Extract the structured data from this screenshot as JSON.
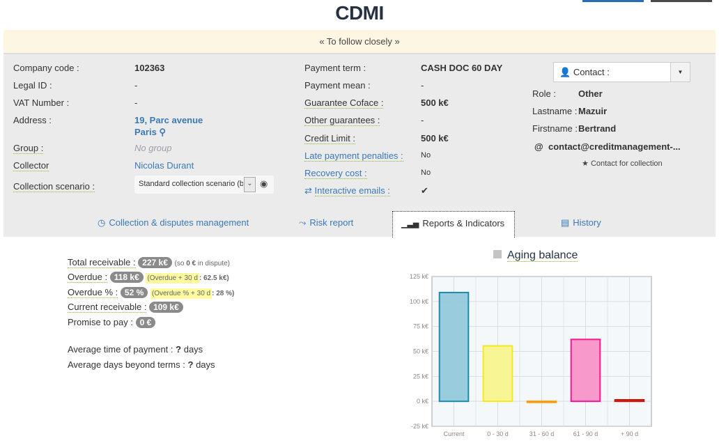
{
  "page": {
    "title": "CDMI",
    "banner": "« To follow closely »"
  },
  "company": {
    "left": [
      {
        "label": "Company code :",
        "value": "102363"
      },
      {
        "label": "Legal ID :",
        "value": "-"
      },
      {
        "label": "VAT Number :",
        "value": "-"
      },
      {
        "label": "Address :",
        "value": "19, Parc avenue",
        "value2": "Paris"
      },
      {
        "label": "Group :",
        "value": "No group"
      },
      {
        "label": "Collector",
        "value": "Nicolas Durant"
      },
      {
        "label": "Collection scenario :",
        "value": "Standard collection scenario (b"
      }
    ],
    "middle": [
      {
        "label": "Payment term :",
        "value": "CASH DOC 60 DAY"
      },
      {
        "label": "Payment mean :",
        "value": "-"
      },
      {
        "label": "Guarantee Coface :",
        "value": "500 k€"
      },
      {
        "label": "Other guarantees :",
        "value": "-"
      },
      {
        "label": "Credit Limit :",
        "value": "500 k€"
      },
      {
        "label": "Late payment penalties :",
        "value": "No"
      },
      {
        "label": "Recovery cost :",
        "value": "No"
      },
      {
        "label": "Interactive emails :",
        "value": "✔"
      }
    ]
  },
  "contact": {
    "dropdown_label": "Contact :",
    "role_label": "Role :",
    "role": "Other",
    "lastname_label": "Lastname :",
    "lastname": "Mazuir",
    "firstname_label": "Firstname :",
    "firstname": "Bertrand",
    "email": "contact@creditmanagement-...",
    "collection_note": "Contact for collection"
  },
  "tabs": [
    {
      "label": "Collection & disputes management",
      "icon": "clock-icon"
    },
    {
      "label": "Risk report",
      "icon": "bolt-icon"
    },
    {
      "label": "Reports & Indicators",
      "icon": "bar-chart-icon",
      "active": true
    },
    {
      "label": "History",
      "icon": "list-icon"
    }
  ],
  "stats": {
    "total_receivable_label": "Total receivable :",
    "total_receivable": "227 k€",
    "total_note_pre": "(so ",
    "total_note_bold": "0 €",
    "total_note_post": " in dispute)",
    "overdue_label": "Overdue :",
    "overdue": "118 k€",
    "overdue_30_label": "(Overdue + 30 d",
    "overdue_30_value": ": 62.5 k€)",
    "overdue_pct_label": "Overdue % :",
    "overdue_pct": "52 %",
    "overdue_pct_30_label": "(Overdue % + 30 d",
    "overdue_pct_30_value": ": 28 %)",
    "current_receivable_label": "Current receivable :",
    "current_receivable": "109 k€",
    "promise_label": "Promise to pay :",
    "promise": "0 €",
    "avg_payment_label": "Average time of payment :",
    "avg_payment_value": "?",
    "avg_payment_unit": "days",
    "avg_beyond_label": "Average days beyond terms :",
    "avg_beyond_value": "?",
    "avg_beyond_unit": "days"
  },
  "chart_data": {
    "type": "bar",
    "title": "Aging balance",
    "categories": [
      "Current",
      "0 - 30 d",
      "31 - 60 d",
      "61 - 90 d",
      "+ 90 d"
    ],
    "values": [
      109,
      55.5,
      -0.5,
      62,
      1.5
    ],
    "colors": [
      "#1a8ab0",
      "#f2ea1a",
      "#ff9900",
      "#ff1493",
      "#cc1100"
    ],
    "fills": [
      "#94cadb",
      "#f8f48e",
      "#ffcc88",
      "#f894c8",
      "#e88a80"
    ],
    "yticks": [
      "125 k€",
      "100 k€",
      "75 k€",
      "50 k€",
      "25 k€",
      "0 k€",
      "-25 k€"
    ],
    "ytick_values": [
      125,
      100,
      75,
      50,
      25,
      0,
      -25
    ],
    "ylim": [
      -25,
      125
    ],
    "unit": "k€",
    "grid": true,
    "legend": "top"
  }
}
